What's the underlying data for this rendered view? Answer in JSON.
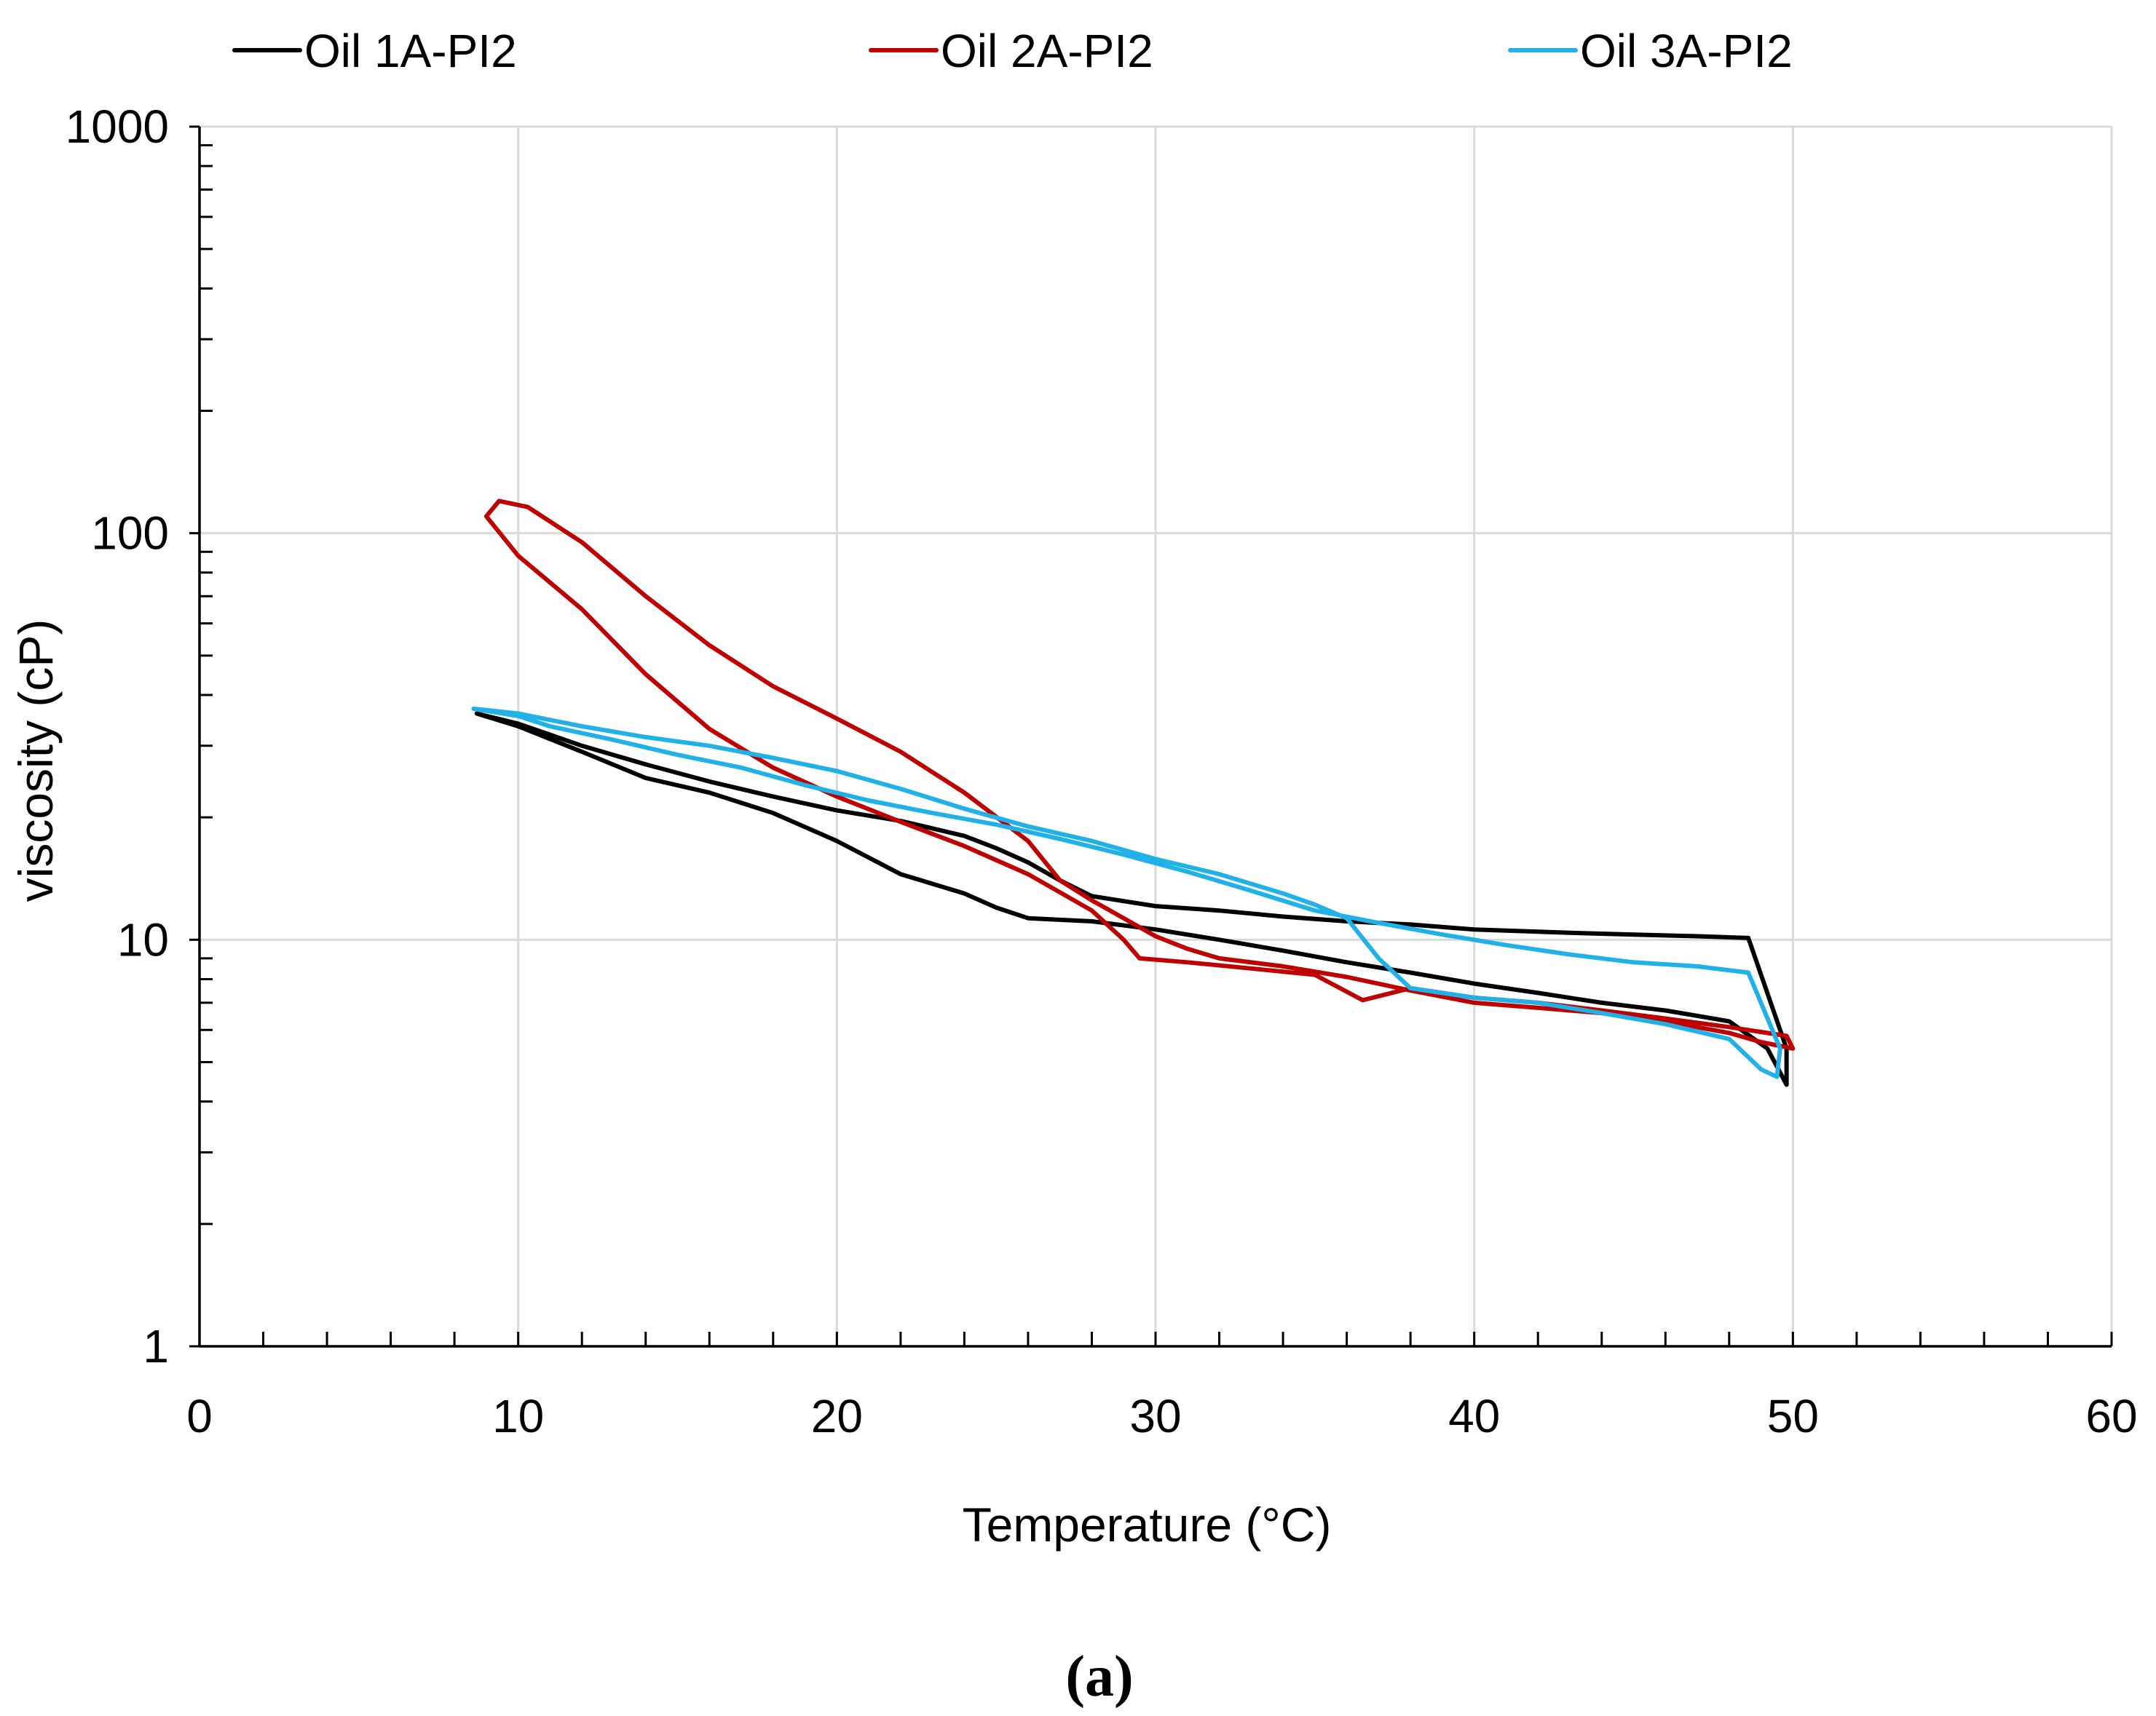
{
  "chart_data": {
    "type": "line",
    "title": "",
    "xlabel": "Temperature (°C)",
    "ylabel": "viscosity (cP)",
    "xlim": [
      0,
      60
    ],
    "ylim": [
      1,
      1000
    ],
    "yscale": "log",
    "x_ticks": [
      0,
      10,
      20,
      30,
      40,
      50,
      60
    ],
    "x_tick_labels": [
      "0",
      "10",
      "20",
      "30",
      "40",
      "50",
      "60"
    ],
    "y_ticks": [
      1,
      10,
      100,
      1000
    ],
    "y_tick_labels": [
      "1",
      "10",
      "100",
      "1000"
    ],
    "grid": true,
    "legend_position": "top",
    "panel_label": "(a)",
    "series": [
      {
        "name": "Oil 1A-PI2",
        "color": "#000000",
        "points": [
          [
            8.7,
            36
          ],
          [
            10,
            33.5
          ],
          [
            12,
            29
          ],
          [
            14,
            25
          ],
          [
            16,
            23
          ],
          [
            18,
            20.5
          ],
          [
            20,
            17.5
          ],
          [
            22,
            14.5
          ],
          [
            24,
            13
          ],
          [
            25,
            12
          ],
          [
            26,
            11.3
          ],
          [
            28,
            11.1
          ],
          [
            30,
            10.6
          ],
          [
            32,
            10
          ],
          [
            34,
            9.4
          ],
          [
            36,
            8.8
          ],
          [
            38,
            8.3
          ],
          [
            40,
            7.8
          ],
          [
            42,
            7.4
          ],
          [
            44,
            7
          ],
          [
            46,
            6.7
          ],
          [
            48,
            6.3
          ],
          [
            49.2,
            5.4
          ],
          [
            49.8,
            4.4
          ],
          [
            49.8,
            5.4
          ],
          [
            48.6,
            10.1
          ],
          [
            47,
            10.2
          ],
          [
            45,
            10.3
          ],
          [
            43,
            10.4
          ],
          [
            40,
            10.6
          ],
          [
            38,
            10.9
          ],
          [
            36,
            11.1
          ],
          [
            34,
            11.4
          ],
          [
            32,
            11.8
          ],
          [
            30,
            12.1
          ],
          [
            28,
            12.8
          ],
          [
            27,
            14
          ],
          [
            26,
            15.5
          ],
          [
            25,
            16.8
          ],
          [
            24,
            18
          ],
          [
            22,
            19.6
          ],
          [
            20,
            20.8
          ],
          [
            18,
            22.5
          ],
          [
            16,
            24.5
          ],
          [
            14,
            27
          ],
          [
            12,
            30
          ],
          [
            10,
            34
          ],
          [
            8.7,
            36
          ]
        ]
      },
      {
        "name": "Oil 2A-PI2",
        "color": "#c00000",
        "points": [
          [
            9,
            110
          ],
          [
            9.4,
            120
          ],
          [
            10.3,
            116
          ],
          [
            12,
            95
          ],
          [
            14,
            70
          ],
          [
            16,
            53
          ],
          [
            18,
            42
          ],
          [
            20,
            35
          ],
          [
            22,
            29
          ],
          [
            24,
            23
          ],
          [
            26,
            17.5
          ],
          [
            27,
            14
          ],
          [
            28,
            12.5
          ],
          [
            29,
            11.3
          ],
          [
            30,
            10.2
          ],
          [
            31,
            9.5
          ],
          [
            32,
            9
          ],
          [
            34,
            8.6
          ],
          [
            36,
            8.1
          ],
          [
            38,
            7.5
          ],
          [
            40,
            7
          ],
          [
            42,
            6.8
          ],
          [
            44,
            6.6
          ],
          [
            46,
            6.3
          ],
          [
            48,
            5.9
          ],
          [
            49,
            5.6
          ],
          [
            50,
            5.4
          ],
          [
            49.8,
            5.8
          ],
          [
            48,
            6.1
          ],
          [
            46,
            6.4
          ],
          [
            44,
            6.7
          ],
          [
            42,
            7
          ],
          [
            40,
            7.2
          ],
          [
            38,
            7.6
          ],
          [
            36.5,
            7.1
          ],
          [
            35,
            8.2
          ],
          [
            33,
            8.5
          ],
          [
            31,
            8.8
          ],
          [
            29.5,
            9
          ],
          [
            29,
            10
          ],
          [
            28,
            11.8
          ],
          [
            26,
            14.5
          ],
          [
            24,
            17
          ],
          [
            22,
            19.5
          ],
          [
            20,
            22.5
          ],
          [
            18,
            26.5
          ],
          [
            16,
            33
          ],
          [
            14,
            45
          ],
          [
            12,
            65
          ],
          [
            10,
            88
          ],
          [
            9,
            110
          ]
        ]
      },
      {
        "name": "Oil 3A-PI2",
        "color": "#1fb1e8",
        "points": [
          [
            8.6,
            37
          ],
          [
            10,
            36
          ],
          [
            12,
            33.5
          ],
          [
            14,
            31.5
          ],
          [
            16,
            30
          ],
          [
            18,
            28
          ],
          [
            20,
            26
          ],
          [
            22,
            23.5
          ],
          [
            24,
            21
          ],
          [
            26,
            19
          ],
          [
            28,
            17.5
          ],
          [
            30,
            15.8
          ],
          [
            32,
            14.5
          ],
          [
            34,
            13
          ],
          [
            35,
            12.2
          ],
          [
            36,
            11.3
          ],
          [
            37,
            9
          ],
          [
            38,
            7.6
          ],
          [
            40,
            7.2
          ],
          [
            42,
            7
          ],
          [
            44,
            6.6
          ],
          [
            46,
            6.2
          ],
          [
            48,
            5.7
          ],
          [
            49,
            4.8
          ],
          [
            49.5,
            4.6
          ],
          [
            49.6,
            5.4
          ],
          [
            48.6,
            8.3
          ],
          [
            47,
            8.6
          ],
          [
            45,
            8.8
          ],
          [
            43,
            9.2
          ],
          [
            41,
            9.7
          ],
          [
            39,
            10.3
          ],
          [
            37,
            11
          ],
          [
            35,
            11.8
          ],
          [
            33,
            13.2
          ],
          [
            31,
            14.7
          ],
          [
            29,
            16.2
          ],
          [
            27,
            17.7
          ],
          [
            25,
            19.2
          ],
          [
            23,
            20.5
          ],
          [
            21,
            22
          ],
          [
            19,
            24
          ],
          [
            17,
            26.5
          ],
          [
            15,
            28.5
          ],
          [
            13,
            31
          ],
          [
            11,
            33.5
          ],
          [
            10,
            35.5
          ],
          [
            8.6,
            37
          ]
        ]
      }
    ]
  }
}
